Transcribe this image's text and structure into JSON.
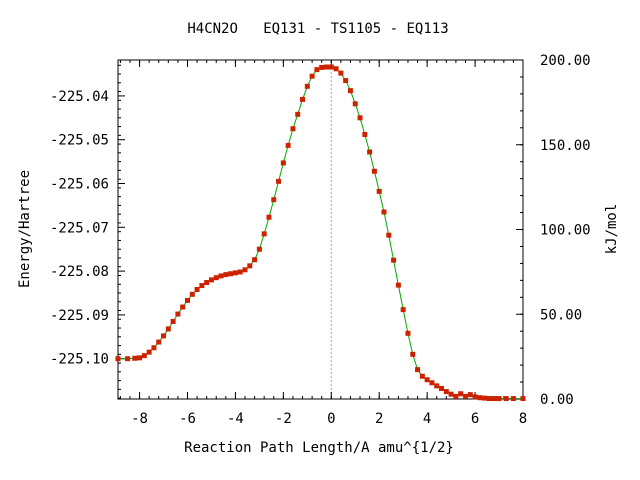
{
  "chart_data": {
    "type": "line",
    "title": "H4CN2O   EQ131 - TS1105 - EQ113",
    "xlabel": "Reaction Path Length/A amu^{1/2}",
    "ylabel": "Energy/Hartree",
    "y2label": "kJ/mol",
    "xlim": [
      -8.9,
      8.0
    ],
    "ylim": [
      -225.1092,
      -225.0318
    ],
    "y2lim": [
      0.0,
      200.0
    ],
    "x_ticks": [
      -8,
      -6,
      -4,
      -2,
      0,
      2,
      4,
      6,
      8
    ],
    "y_ticks": [
      -225.04,
      -225.05,
      -225.06,
      -225.07,
      -225.08,
      -225.09,
      -225.1
    ],
    "y2_ticks": [
      0.0,
      50.0,
      100.0,
      150.0,
      200.0
    ],
    "x_tick_labels": [
      "-8",
      "-6",
      "-4",
      "-2",
      "0",
      "2",
      "4",
      "6",
      "8"
    ],
    "y_tick_labels": [
      "-225.04",
      "-225.05",
      "-225.06",
      "-225.07",
      "-225.08",
      "-225.09",
      "-225.10"
    ],
    "y2_tick_labels": [
      "0.00",
      "50.00",
      "100.00",
      "150.00",
      "200.00"
    ],
    "ts_marker_x": 0.0,
    "grid": false,
    "colors": {
      "line": "#00aa00",
      "points": "#cc2200",
      "ts_marker": "#aaaaaa",
      "axes": "#000000"
    },
    "series": [
      {
        "x": [
          -8.9,
          -8.5,
          -8.2,
          -8.0,
          -7.8,
          -7.6,
          -7.4,
          -7.2,
          -7.0,
          -6.8,
          -6.6,
          -6.4,
          -6.2,
          -6.0,
          -5.8,
          -5.6,
          -5.4,
          -5.2,
          -5.0,
          -4.8,
          -4.6,
          -4.4,
          -4.2,
          -4.0,
          -3.8,
          -3.6,
          -3.4,
          -3.2,
          -3.0,
          -2.8,
          -2.6,
          -2.4,
          -2.2,
          -2.0,
          -1.8,
          -1.6,
          -1.4,
          -1.2,
          -1.0,
          -0.8,
          -0.6,
          -0.4,
          -0.2,
          0.0,
          0.2,
          0.4,
          0.6,
          0.8,
          1.0,
          1.2,
          1.4,
          1.6,
          1.8,
          2.0,
          2.2,
          2.4,
          2.6,
          2.8,
          3.0,
          3.2,
          3.4,
          3.6,
          3.8,
          4.0,
          4.2,
          4.4,
          4.6,
          4.8,
          5.0,
          5.2,
          5.4,
          5.6,
          5.8,
          6.0,
          6.2,
          6.4,
          6.6,
          6.8,
          7.0,
          7.3,
          7.6,
          8.0
        ],
        "y": [
          -225.1,
          -225.1,
          -225.0999,
          -225.0998,
          -225.0993,
          -225.0985,
          -225.0975,
          -225.0962,
          -225.0948,
          -225.0932,
          -225.0915,
          -225.0898,
          -225.0882,
          -225.0867,
          -225.0853,
          -225.0842,
          -225.0833,
          -225.0826,
          -225.082,
          -225.0815,
          -225.0811,
          -225.0808,
          -225.0806,
          -225.0804,
          -225.0802,
          -225.0797,
          -225.0788,
          -225.0774,
          -225.075,
          -225.0715,
          -225.0677,
          -225.0637,
          -225.0595,
          -225.0553,
          -225.0513,
          -225.0475,
          -225.0442,
          -225.0408,
          -225.0378,
          -225.0355,
          -225.034,
          -225.0335,
          -225.0334,
          -225.0334,
          -225.0338,
          -225.0348,
          -225.0365,
          -225.0388,
          -225.0418,
          -225.045,
          -225.0488,
          -225.0528,
          -225.0572,
          -225.0618,
          -225.0665,
          -225.0718,
          -225.0775,
          -225.0832,
          -225.0888,
          -225.0942,
          -225.099,
          -225.1025,
          -225.104,
          -225.1048,
          -225.1055,
          -225.1062,
          -225.1068,
          -225.1075,
          -225.1081,
          -225.1086,
          -225.108,
          -225.1086,
          -225.1082,
          -225.1087,
          -225.1089,
          -225.109,
          -225.1091,
          -225.1091,
          -225.1091,
          -225.1091,
          -225.1091,
          -225.1091
        ]
      }
    ]
  }
}
